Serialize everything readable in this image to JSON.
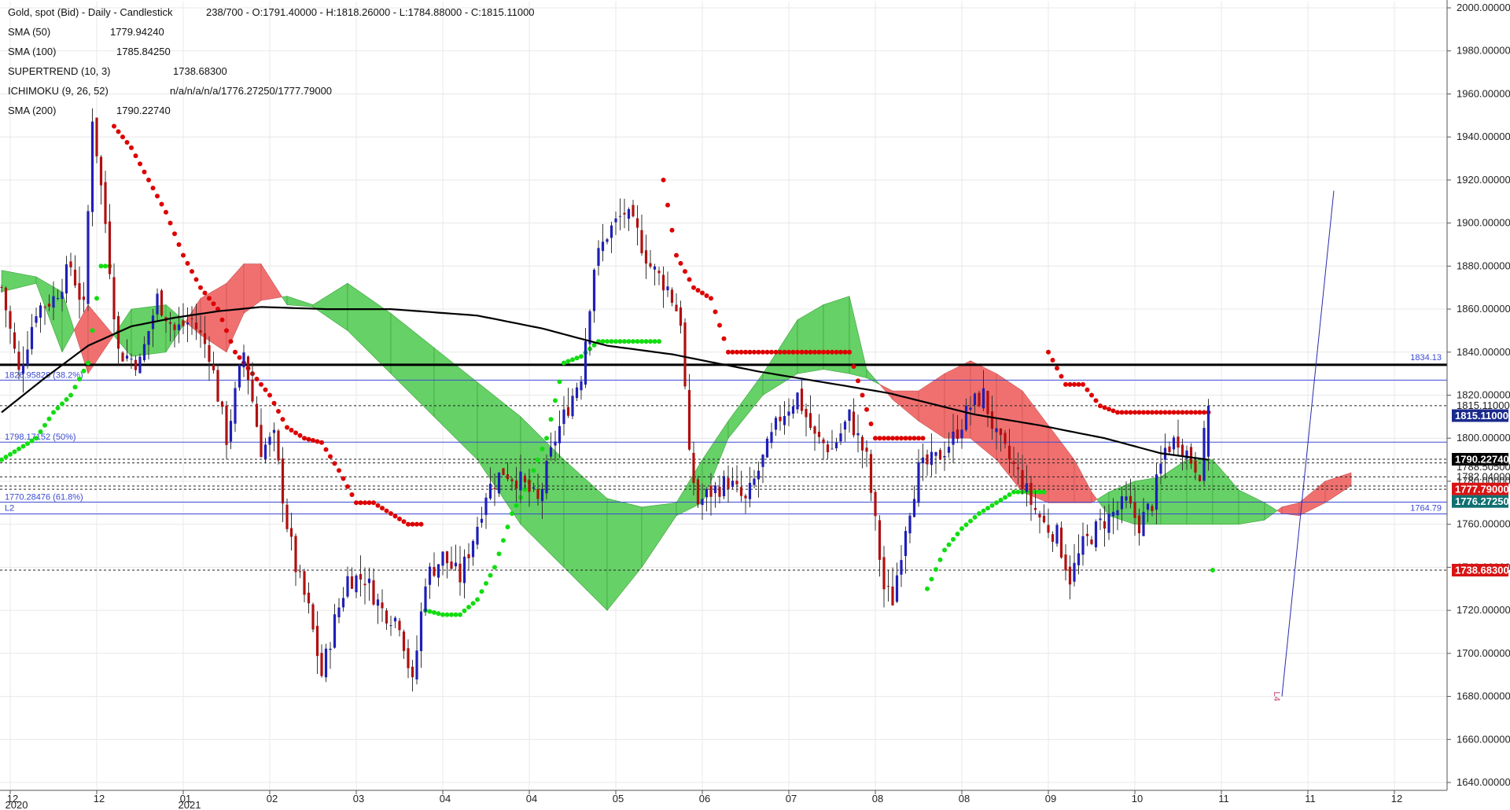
{
  "header": {
    "title": "Gold, spot (Bid) - Daily - Candlestick",
    "ohlc": "238/700 - O:1791.40000 - H:1818.26000 - L:1784.88000 - C:1815.11000"
  },
  "indicators": [
    {
      "name": "SMA (50)",
      "value": "1779.94240"
    },
    {
      "name": "SMA (100)",
      "value": "1785.84250"
    },
    {
      "name": "SUPERTREND (10, 3)",
      "value": "1738.68300"
    },
    {
      "name": "ICHIMOKU (9, 26, 52)",
      "value": "n/a/n/a/n/a/1776.27250/1777.79000"
    },
    {
      "name": "SMA (200)",
      "value": "1790.22740"
    }
  ],
  "colors": {
    "bull": "#1f1fb8",
    "bear": "#b01010",
    "cloud_bull": "#66d166",
    "cloud_bear": "#f07070",
    "supertrend_up": "#11dd11",
    "supertrend_down": "#dd0000",
    "sma200": "#000000",
    "fib": "#3b4bd1",
    "tag_blue": "#1a2a8c",
    "tag_black": "#000000",
    "tag_red": "#d81414",
    "tag_teal": "#0f7070"
  },
  "chart_data": {
    "type": "candlestick",
    "ylim": [
      1635,
      2005
    ],
    "yticks": [
      1640,
      1660,
      1680,
      1700,
      1720,
      1740,
      1760,
      1780,
      1800,
      1820,
      1840,
      1860,
      1880,
      1900,
      1920,
      1940,
      1960,
      1980,
      2000
    ],
    "ytick_labels": [
      "1640.00000",
      "1660.00000",
      "1680.00000",
      "1700.00000",
      "1720.00000",
      "1740.00000",
      "1760.00000",
      "1780.00000",
      "1800.00000",
      "1820.00000",
      "1840.00000",
      "1860.00000",
      "1880.00000",
      "1900.00000",
      "1920.00000",
      "1940.00000",
      "1960.00000",
      "1980.00000",
      "2000.00000"
    ],
    "xticks": [
      {
        "label": "12",
        "sub": "2020",
        "index": 2
      },
      {
        "label": "12",
        "sub": "",
        "index": 22
      },
      {
        "label": "01",
        "sub": "2021",
        "index": 42
      },
      {
        "label": "02",
        "sub": "",
        "index": 62
      },
      {
        "label": "03",
        "sub": "",
        "index": 82
      },
      {
        "label": "04",
        "sub": "",
        "index": 102
      },
      {
        "label": "04",
        "sub": "",
        "index": 122
      },
      {
        "label": "05",
        "sub": "",
        "index": 142
      },
      {
        "label": "06",
        "sub": "",
        "index": 162
      },
      {
        "label": "07",
        "sub": "",
        "index": 182
      },
      {
        "label": "08",
        "sub": "",
        "index": 202
      },
      {
        "label": "08",
        "sub": "",
        "index": 222
      },
      {
        "label": "09",
        "sub": "",
        "index": 242
      },
      {
        "label": "10",
        "sub": "",
        "index": 262
      },
      {
        "label": "11",
        "sub": "",
        "index": 282
      },
      {
        "label": "11",
        "sub": "",
        "index": 302
      },
      {
        "label": "12",
        "sub": "",
        "index": 322
      }
    ],
    "candle_count": 280,
    "close_anchors": [
      [
        0,
        1870
      ],
      [
        4,
        1830
      ],
      [
        8,
        1860
      ],
      [
        12,
        1865
      ],
      [
        16,
        1880
      ],
      [
        19,
        1860
      ],
      [
        21,
        1950
      ],
      [
        24,
        1900
      ],
      [
        27,
        1840
      ],
      [
        32,
        1835
      ],
      [
        36,
        1865
      ],
      [
        40,
        1850
      ],
      [
        44,
        1855
      ],
      [
        48,
        1840
      ],
      [
        52,
        1800
      ],
      [
        56,
        1840
      ],
      [
        60,
        1795
      ],
      [
        63,
        1800
      ],
      [
        66,
        1760
      ],
      [
        68,
        1740
      ],
      [
        71,
        1720
      ],
      [
        74,
        1690
      ],
      [
        77,
        1715
      ],
      [
        80,
        1735
      ],
      [
        84,
        1735
      ],
      [
        88,
        1720
      ],
      [
        92,
        1715
      ],
      [
        95,
        1685
      ],
      [
        98,
        1735
      ],
      [
        102,
        1745
      ],
      [
        106,
        1735
      ],
      [
        110,
        1760
      ],
      [
        112,
        1775
      ],
      [
        116,
        1785
      ],
      [
        120,
        1780
      ],
      [
        124,
        1770
      ],
      [
        128,
        1800
      ],
      [
        131,
        1815
      ],
      [
        134,
        1830
      ],
      [
        137,
        1880
      ],
      [
        140,
        1895
      ],
      [
        144,
        1905
      ],
      [
        147,
        1895
      ],
      [
        150,
        1880
      ],
      [
        154,
        1870
      ],
      [
        157,
        1855
      ],
      [
        159,
        1790
      ],
      [
        161,
        1770
      ],
      [
        164,
        1775
      ],
      [
        168,
        1780
      ],
      [
        172,
        1770
      ],
      [
        176,
        1790
      ],
      [
        180,
        1810
      ],
      [
        184,
        1820
      ],
      [
        188,
        1800
      ],
      [
        192,
        1795
      ],
      [
        196,
        1810
      ],
      [
        200,
        1790
      ],
      [
        202,
        1760
      ],
      [
        204,
        1730
      ],
      [
        206,
        1725
      ],
      [
        209,
        1760
      ],
      [
        212,
        1785
      ],
      [
        216,
        1790
      ],
      [
        220,
        1800
      ],
      [
        224,
        1815
      ],
      [
        227,
        1820
      ],
      [
        230,
        1800
      ],
      [
        233,
        1790
      ],
      [
        236,
        1780
      ],
      [
        238,
        1770
      ],
      [
        241,
        1760
      ],
      [
        244,
        1755
      ],
      [
        247,
        1735
      ],
      [
        250,
        1750
      ],
      [
        254,
        1760
      ],
      [
        257,
        1765
      ],
      [
        260,
        1770
      ],
      [
        263,
        1760
      ],
      [
        266,
        1770
      ],
      [
        269,
        1795
      ],
      [
        272,
        1800
      ],
      [
        275,
        1790
      ],
      [
        277,
        1785
      ],
      [
        279,
        1815
      ]
    ],
    "last_candle": {
      "open": 1791.4,
      "high": 1818.26,
      "low": 1784.88,
      "close": 1815.11
    },
    "sma200": [
      [
        0,
        1812
      ],
      [
        10,
        1828
      ],
      [
        20,
        1843
      ],
      [
        30,
        1852
      ],
      [
        40,
        1856
      ],
      [
        50,
        1859
      ],
      [
        60,
        1861
      ],
      [
        75,
        1860
      ],
      [
        90,
        1860
      ],
      [
        110,
        1857
      ],
      [
        125,
        1851
      ],
      [
        140,
        1843
      ],
      [
        155,
        1839
      ],
      [
        165,
        1835
      ],
      [
        175,
        1831
      ],
      [
        190,
        1826
      ],
      [
        205,
        1821
      ],
      [
        215,
        1816
      ],
      [
        225,
        1811
      ],
      [
        240,
        1806
      ],
      [
        255,
        1800
      ],
      [
        268,
        1793
      ],
      [
        279,
        1790
      ]
    ],
    "ichimoku_cloud": [
      [
        0,
        1878,
        1868
      ],
      [
        8,
        1875,
        1872
      ],
      [
        14,
        1868,
        1840
      ],
      [
        20,
        1830,
        1862
      ],
      [
        30,
        1860,
        1838
      ],
      [
        38,
        1862,
        1840
      ],
      [
        46,
        1848,
        1865
      ],
      [
        52,
        1840,
        1872
      ],
      [
        56,
        1858,
        1881
      ],
      [
        60,
        1864,
        1881
      ],
      [
        66,
        1866,
        1862
      ],
      [
        72,
        1862,
        1861
      ],
      [
        80,
        1872,
        1850
      ],
      [
        90,
        1858,
        1830
      ],
      [
        100,
        1842,
        1810
      ],
      [
        110,
        1826,
        1790
      ],
      [
        120,
        1810,
        1760
      ],
      [
        130,
        1790,
        1740
      ],
      [
        140,
        1772,
        1720
      ],
      [
        148,
        1768,
        1740
      ],
      [
        156,
        1770,
        1764
      ],
      [
        162,
        1790,
        1770
      ],
      [
        168,
        1808,
        1800
      ],
      [
        176,
        1830,
        1820
      ],
      [
        184,
        1855,
        1830
      ],
      [
        190,
        1862,
        1832
      ],
      [
        196,
        1866,
        1830
      ],
      [
        200,
        1832,
        1828
      ],
      [
        206,
        1818,
        1822
      ],
      [
        212,
        1808,
        1822
      ],
      [
        218,
        1800,
        1830
      ],
      [
        224,
        1800,
        1836
      ],
      [
        230,
        1790,
        1830
      ],
      [
        236,
        1775,
        1822
      ],
      [
        242,
        1770,
        1806
      ],
      [
        248,
        1770,
        1790
      ],
      [
        252,
        1770,
        1775
      ],
      [
        256,
        1775,
        1764
      ],
      [
        262,
        1780,
        1760
      ],
      [
        268,
        1782,
        1760
      ],
      [
        274,
        1790,
        1760
      ],
      [
        280,
        1790,
        1760
      ],
      [
        286,
        1776,
        1760
      ],
      [
        292,
        1770,
        1762
      ],
      [
        296,
        1765,
        1768
      ],
      [
        300,
        1764,
        1770
      ],
      [
        306,
        1770,
        1780
      ],
      [
        312,
        1778,
        1784
      ]
    ],
    "supertrend": [
      [
        0,
        1790,
        "up"
      ],
      [
        4,
        1795,
        "up"
      ],
      [
        8,
        1800,
        "up"
      ],
      [
        12,
        1812,
        "up"
      ],
      [
        16,
        1820,
        "up"
      ],
      [
        20,
        1835,
        "up"
      ],
      [
        23,
        1880,
        "up"
      ],
      [
        26,
        1945,
        "down"
      ],
      [
        30,
        1935,
        "down"
      ],
      [
        34,
        1920,
        "down"
      ],
      [
        38,
        1905,
        "down"
      ],
      [
        42,
        1885,
        "down"
      ],
      [
        46,
        1870,
        "down"
      ],
      [
        50,
        1860,
        "down"
      ],
      [
        54,
        1840,
        "down"
      ],
      [
        58,
        1830,
        "down"
      ],
      [
        62,
        1820,
        "down"
      ],
      [
        66,
        1805,
        "down"
      ],
      [
        70,
        1800,
        "down"
      ],
      [
        74,
        1798,
        "down"
      ],
      [
        78,
        1785,
        "down"
      ],
      [
        82,
        1770,
        "down"
      ],
      [
        86,
        1770,
        "down"
      ],
      [
        90,
        1765,
        "down"
      ],
      [
        94,
        1760,
        "down"
      ],
      [
        98,
        1720,
        "up"
      ],
      [
        102,
        1718,
        "up"
      ],
      [
        106,
        1718,
        "up"
      ],
      [
        110,
        1725,
        "up"
      ],
      [
        114,
        1740,
        "up"
      ],
      [
        118,
        1765,
        "up"
      ],
      [
        122,
        1780,
        "up"
      ],
      [
        126,
        1800,
        "up"
      ],
      [
        130,
        1835,
        "up"
      ],
      [
        134,
        1838,
        "up"
      ],
      [
        138,
        1845,
        "up"
      ],
      [
        142,
        1845,
        "up"
      ],
      [
        146,
        1845,
        "up"
      ],
      [
        150,
        1845,
        "up"
      ],
      [
        153,
        1920,
        "down"
      ],
      [
        156,
        1885,
        "down"
      ],
      [
        160,
        1870,
        "down"
      ],
      [
        164,
        1865,
        "down"
      ],
      [
        168,
        1840,
        "down"
      ],
      [
        172,
        1840,
        "down"
      ],
      [
        176,
        1840,
        "down"
      ],
      [
        180,
        1840,
        "down"
      ],
      [
        184,
        1840,
        "down"
      ],
      [
        188,
        1840,
        "down"
      ],
      [
        192,
        1840,
        "down"
      ],
      [
        196,
        1840,
        "down"
      ],
      [
        202,
        1800,
        "down"
      ],
      [
        206,
        1800,
        "down"
      ],
      [
        210,
        1800,
        "down"
      ],
      [
        214,
        1730,
        "up"
      ],
      [
        218,
        1748,
        "up"
      ],
      [
        222,
        1758,
        "up"
      ],
      [
        226,
        1765,
        "up"
      ],
      [
        230,
        1770,
        "up"
      ],
      [
        234,
        1775,
        "up"
      ],
      [
        238,
        1775,
        "up"
      ],
      [
        242,
        1840,
        "down"
      ],
      [
        246,
        1825,
        "down"
      ],
      [
        250,
        1825,
        "down"
      ],
      [
        254,
        1815,
        "down"
      ],
      [
        258,
        1812,
        "down"
      ],
      [
        262,
        1812,
        "down"
      ],
      [
        266,
        1812,
        "down"
      ],
      [
        270,
        1812,
        "down"
      ],
      [
        274,
        1812,
        "down"
      ],
      [
        278,
        1812,
        "down"
      ],
      [
        280,
        1738.68,
        "up"
      ]
    ],
    "hlines": [
      {
        "price": 1834.13,
        "style": "thick",
        "label": "1834.13"
      },
      {
        "price": 1827.0,
        "style": "blue",
        "label": "1826.95828 (38.2%)"
      },
      {
        "price": 1798.17,
        "style": "blue",
        "label": "1798.17152 (50%)"
      },
      {
        "price": 1770.28,
        "style": "blue",
        "label": "1770.28476 (61.8%)"
      },
      {
        "price": 1764.79,
        "style": "blue",
        "label": "1764.79"
      },
      {
        "price": 1815.11,
        "style": "dotted",
        "label": ""
      },
      {
        "price": 1790.23,
        "style": "dotted",
        "label": ""
      },
      {
        "price": 1788.505,
        "style": "dotted",
        "label": ""
      },
      {
        "price": 1782.04,
        "style": "dotted",
        "label": ""
      },
      {
        "price": 1777.79,
        "style": "dotted",
        "label": ""
      },
      {
        "price": 1776.27,
        "style": "dotted",
        "label": ""
      },
      {
        "price": 1738.68,
        "style": "dotted",
        "label": ""
      }
    ],
    "fib_label_extra": "L2",
    "axis_markers": [
      {
        "label": "1815.11000",
        "price": 1815.11,
        "kind": "text"
      },
      {
        "label": "1815.11000",
        "price": 1810.5,
        "kind": "tag_blue"
      },
      {
        "label": "1790.22740",
        "price": 1790.22,
        "kind": "tag_black"
      },
      {
        "label": "1788.50500",
        "price": 1786.5,
        "kind": "text"
      },
      {
        "label": "1782.04000",
        "price": 1782.04,
        "kind": "text"
      },
      {
        "label": "1777.79000",
        "price": 1776.4,
        "kind": "tag_red"
      },
      {
        "label": "1776.27250",
        "price": 1770.6,
        "kind": "tag_teal"
      },
      {
        "label": "1738.68300",
        "price": 1738.68,
        "kind": "tag_red"
      }
    ],
    "trendline": {
      "from": [
        296,
        1680
      ],
      "to": [
        308,
        1915
      ],
      "label": "L4"
    }
  }
}
